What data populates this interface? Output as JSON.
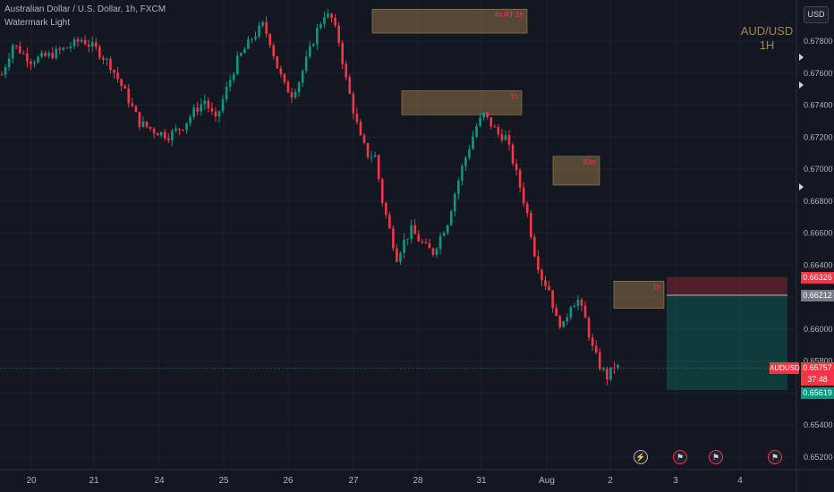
{
  "header": {
    "symbol_line": "Australian Dollar / U.S. Dollar, 1h, FXCM",
    "indicator_line": "Watermark Light"
  },
  "watermark": {
    "line1": "AUD/USD",
    "line2": "1H"
  },
  "currency_button": "USD",
  "price_labels": {
    "upper": "0.66326",
    "entry": "0.66212",
    "current": "0.65757",
    "countdown": "37:48",
    "target": "0.65619",
    "symbol_tag": "AUDUSD"
  },
  "zone_labels": [
    "4h RT 1h",
    "1h",
    "30m",
    "1h"
  ],
  "event_icons": [
    "lightning-icon",
    "flag-icon",
    "flag-icon",
    "flag-icon"
  ],
  "chart_data": {
    "type": "candlestick",
    "title": "Australian Dollar / U.S. Dollar, 1h, FXCM",
    "y_axis": {
      "ticks": [
        "0.67800",
        "0.67600",
        "0.67400",
        "0.67200",
        "0.67000",
        "0.66800",
        "0.66600",
        "0.66400",
        "0.66200",
        "0.66000",
        "0.65800",
        "0.65600",
        "0.65400",
        "0.65200"
      ],
      "range": [
        0.6515,
        0.6795
      ]
    },
    "x_axis": {
      "ticks": [
        "20",
        "21",
        "24",
        "25",
        "26",
        "27",
        "28",
        "31",
        "Aug",
        "2",
        "3",
        "4"
      ]
    },
    "price_path": [
      [
        0,
        0.6759
      ],
      [
        3,
        0.6778
      ],
      [
        8,
        0.6768
      ],
      [
        13,
        0.6771
      ],
      [
        18,
        0.6776
      ],
      [
        22,
        0.6781
      ],
      [
        26,
        0.6775
      ],
      [
        30,
        0.6765
      ],
      [
        34,
        0.6748
      ],
      [
        38,
        0.6729
      ],
      [
        42,
        0.6724
      ],
      [
        46,
        0.6721
      ],
      [
        50,
        0.6727
      ],
      [
        53,
        0.6736
      ],
      [
        56,
        0.6743
      ],
      [
        59,
        0.673
      ],
      [
        62,
        0.675
      ],
      [
        65,
        0.6768
      ],
      [
        69,
        0.6782
      ],
      [
        72,
        0.679
      ],
      [
        74,
        0.678
      ],
      [
        76,
        0.6764
      ],
      [
        78,
        0.6752
      ],
      [
        80,
        0.6747
      ],
      [
        82,
        0.6755
      ],
      [
        84,
        0.6768
      ],
      [
        87,
        0.6787
      ],
      [
        89,
        0.6797
      ],
      [
        91,
        0.6794
      ],
      [
        93,
        0.678
      ],
      [
        95,
        0.6756
      ],
      [
        97,
        0.6737
      ],
      [
        99,
        0.6719
      ],
      [
        101,
        0.6709
      ],
      [
        103,
        0.6708
      ],
      [
        105,
        0.668
      ],
      [
        107,
        0.6662
      ],
      [
        109,
        0.6645
      ],
      [
        111,
        0.6655
      ],
      [
        113,
        0.6662
      ],
      [
        115,
        0.6656
      ],
      [
        117,
        0.6651
      ],
      [
        119,
        0.6648
      ],
      [
        121,
        0.6658
      ],
      [
        123,
        0.6667
      ],
      [
        125,
        0.6685
      ],
      [
        127,
        0.6701
      ],
      [
        129,
        0.6714
      ],
      [
        131,
        0.6727
      ],
      [
        133,
        0.6734
      ],
      [
        135,
        0.6728
      ],
      [
        137,
        0.6722
      ],
      [
        139,
        0.672
      ],
      [
        141,
        0.6705
      ],
      [
        143,
        0.6689
      ],
      [
        145,
        0.6672
      ],
      [
        147,
        0.6648
      ],
      [
        149,
        0.6632
      ],
      [
        151,
        0.6625
      ],
      [
        153,
        0.6606
      ],
      [
        155,
        0.6602
      ],
      [
        157,
        0.6616
      ],
      [
        159,
        0.6618
      ],
      [
        161,
        0.6606
      ],
      [
        163,
        0.6588
      ],
      [
        165,
        0.6577
      ],
      [
        167,
        0.657
      ],
      [
        169,
        0.6577
      ],
      [
        170,
        0.6576
      ]
    ],
    "zones": [
      {
        "label": "4h RT 1h",
        "from": 0.6785,
        "to": 0.68,
        "type": "supply"
      },
      {
        "label": "1h",
        "from": 0.6734,
        "to": 0.6749,
        "type": "supply"
      },
      {
        "label": "30m",
        "from": 0.669,
        "to": 0.6708,
        "type": "supply"
      },
      {
        "label": "1h",
        "from": 0.6613,
        "to": 0.663,
        "type": "supply"
      }
    ],
    "position": {
      "type": "short",
      "stop": 0.66326,
      "entry": 0.66212,
      "target": 0.65619
    },
    "last_price": 0.65757
  },
  "colors": {
    "background": "#131722",
    "up": "#089981",
    "down": "#f23645",
    "zone": "#a8844d",
    "grid": "#1e222d"
  }
}
